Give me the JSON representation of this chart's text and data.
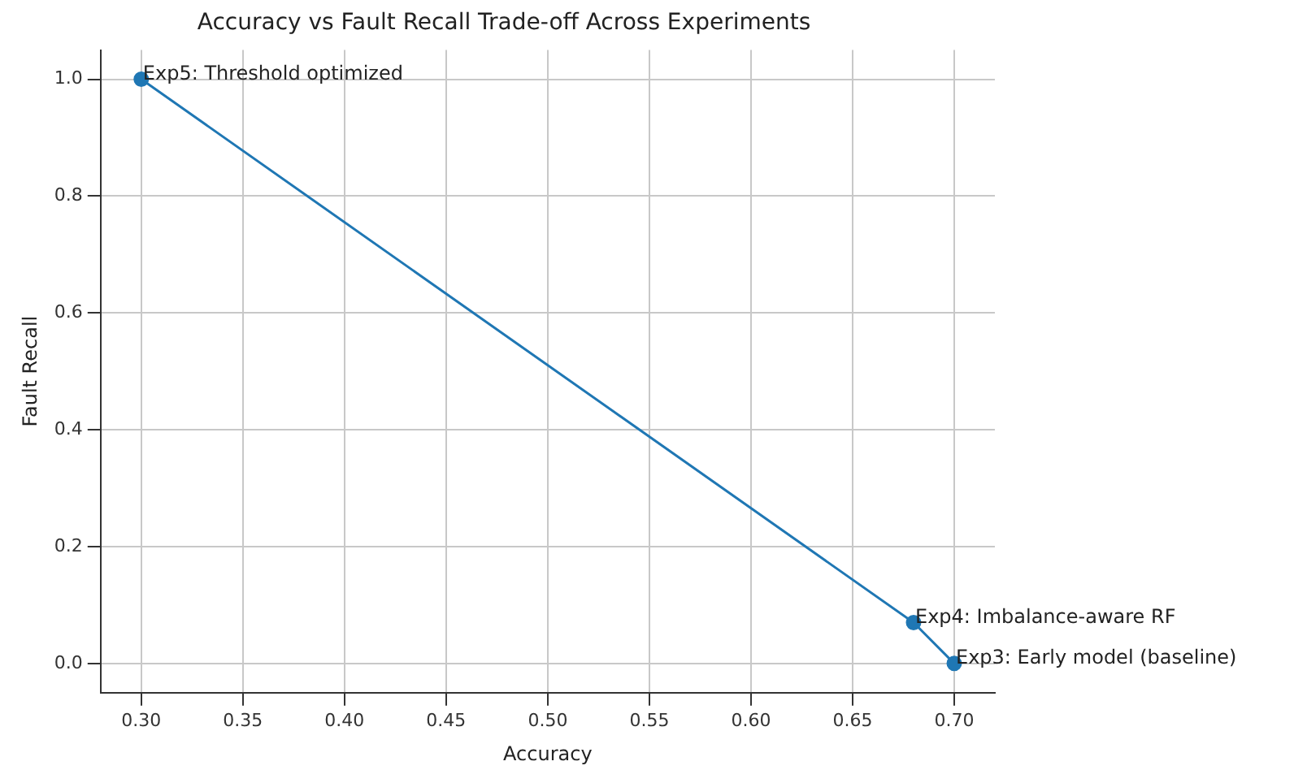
{
  "chart_data": {
    "type": "line",
    "title": "Accuracy vs Fault Recall Trade-off Across Experiments",
    "xlabel": "Accuracy",
    "ylabel": "Fault Recall",
    "x": [
      0.7,
      0.68,
      0.3
    ],
    "series": [
      {
        "color": "#1f77b4",
        "values": [
          0.0,
          0.07,
          1.0
        ]
      }
    ],
    "xlim": [
      0.28,
      0.72
    ],
    "xticks": [
      {
        "value": 0.3,
        "label": "0.30"
      },
      {
        "value": 0.35,
        "label": "0.35"
      },
      {
        "value": 0.4,
        "label": "0.40"
      },
      {
        "value": 0.45,
        "label": "0.45"
      },
      {
        "value": 0.5,
        "label": "0.50"
      },
      {
        "value": 0.55,
        "label": "0.55"
      },
      {
        "value": 0.6,
        "label": "0.60"
      },
      {
        "value": 0.65,
        "label": "0.65"
      },
      {
        "value": 0.7,
        "label": "0.70"
      }
    ],
    "ylim": [
      -0.05,
      1.05
    ],
    "yticks": [
      {
        "value": 0,
        "label": "0.0"
      },
      {
        "value": 0.2,
        "label": "0.2"
      },
      {
        "value": 0.4,
        "label": "0.4"
      },
      {
        "value": 0.6,
        "label": "0.6"
      },
      {
        "value": 0.8,
        "label": "0.8"
      },
      {
        "value": 1,
        "label": "1.0"
      }
    ],
    "annotations": [
      {
        "text": "Exp3: Early model (baseline)",
        "x": 0.7,
        "y": 0.0
      },
      {
        "text": "Exp4: Imbalance-aware RF",
        "x": 0.68,
        "y": 0.07
      },
      {
        "text": "Exp5: Threshold optimized",
        "x": 0.3,
        "y": 1.0
      }
    ],
    "grid": true,
    "marker": "circle",
    "line_style": "solid"
  }
}
